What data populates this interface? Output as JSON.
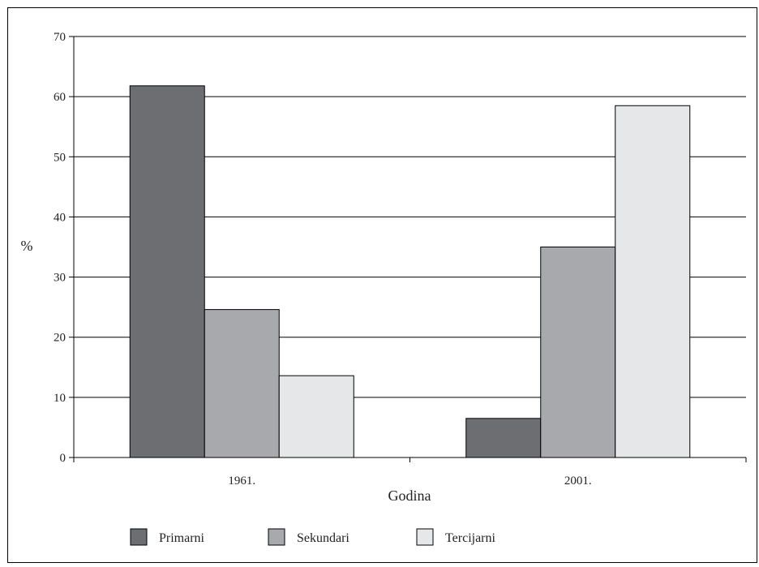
{
  "chart_data": {
    "type": "bar",
    "title": "",
    "xlabel": "Godina",
    "ylabel": "%",
    "categories": [
      "1961.",
      "2001."
    ],
    "series": [
      {
        "name": "Primarni",
        "values": [
          61.8,
          6.5
        ],
        "color": "#6d6e71"
      },
      {
        "name": "Sekundari",
        "values": [
          24.6,
          35.0
        ],
        "color": "#a7a9ac"
      },
      {
        "name": "Tercijarni",
        "values": [
          13.6,
          58.5
        ],
        "color": "#e6e7e8"
      }
    ],
    "ylim": [
      0,
      70
    ],
    "yticks": [
      "0",
      "10",
      "20",
      "30",
      "40",
      "50",
      "60",
      "70"
    ],
    "grid": true,
    "legend_position": "bottom"
  }
}
